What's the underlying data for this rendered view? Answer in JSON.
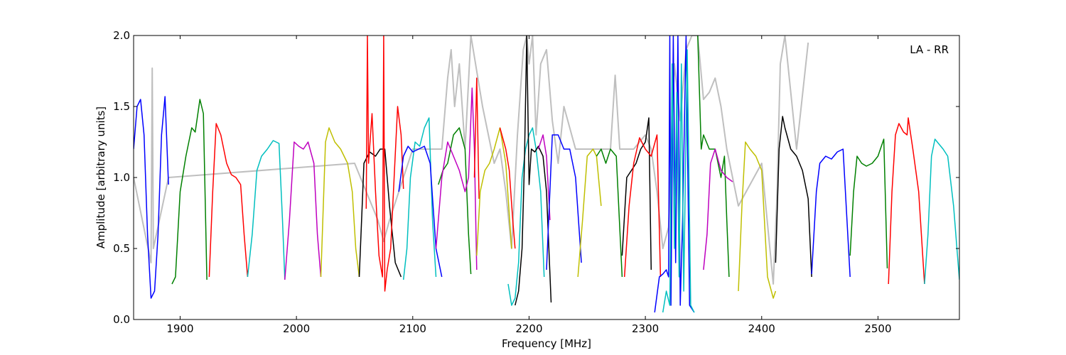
{
  "chart_data": {
    "type": "line",
    "title": "",
    "xlabel": "Frequency [MHz]",
    "ylabel": "Amplitude [arbitrary units]",
    "annotation": "LA - RR",
    "xlim": [
      1860,
      2570
    ],
    "ylim": [
      0.0,
      2.0
    ],
    "xticks": [
      "1900",
      "2000",
      "2100",
      "2200",
      "2300",
      "2400",
      "2500"
    ],
    "yticks": [
      "0.0",
      "0.5",
      "1.0",
      "1.5",
      "2.0"
    ],
    "grid": false,
    "background_series": {
      "color": "#bfbfbf",
      "x": [
        1860,
        1875,
        1876,
        1877,
        1890,
        2050,
        2070,
        2075,
        2080,
        2100,
        2125,
        2130,
        2133,
        2136,
        2140,
        2145,
        2150,
        2160,
        2170,
        2175,
        2180,
        2185,
        2190,
        2195,
        2198,
        2200,
        2203,
        2206,
        2210,
        2215,
        2220,
        2225,
        2230,
        2240,
        2250,
        2260,
        2270,
        2274,
        2278,
        2290,
        2300,
        2305,
        2310,
        2315,
        2320,
        2325,
        2330,
        2335,
        2340,
        2345,
        2350,
        2355,
        2360,
        2365,
        2370,
        2380,
        2400,
        2410,
        2413,
        2416,
        2420,
        2430,
        2440
      ],
      "y": [
        1.0,
        0.4,
        1.77,
        0.5,
        1.0,
        1.1,
        0.7,
        0.55,
        0.7,
        1.2,
        1.2,
        1.7,
        1.9,
        1.5,
        1.8,
        1.2,
        2.0,
        1.5,
        1.1,
        1.2,
        0.9,
        0.5,
        1.3,
        1.9,
        2.0,
        1.8,
        2.0,
        1.3,
        1.8,
        1.9,
        1.4,
        1.1,
        1.5,
        1.2,
        1.2,
        1.2,
        1.2,
        1.72,
        1.2,
        1.2,
        1.3,
        1.2,
        0.9,
        0.5,
        0.65,
        1.8,
        1.4,
        1.9,
        2.0,
        2.0,
        1.55,
        1.6,
        1.7,
        1.5,
        1.2,
        0.8,
        1.1,
        0.25,
        0.85,
        1.8,
        2.0,
        1.2,
        1.95
      ]
    },
    "series": [
      {
        "color": "#0000ff",
        "x": [
          1860,
          1863,
          1866,
          1869,
          1872,
          1875,
          1878,
          1881,
          1884,
          1887,
          1890
        ],
        "y": [
          1.2,
          1.5,
          1.55,
          1.3,
          0.6,
          0.15,
          0.2,
          0.6,
          1.3,
          1.57,
          0.95
        ]
      },
      {
        "color": "#008000",
        "x": [
          1893,
          1896,
          1900,
          1905,
          1910,
          1913,
          1917,
          1920,
          1923
        ],
        "y": [
          0.25,
          0.3,
          0.9,
          1.15,
          1.35,
          1.32,
          1.55,
          1.45,
          0.28
        ]
      },
      {
        "color": "#ff0000",
        "x": [
          1925,
          1928,
          1931,
          1935,
          1940,
          1944,
          1948,
          1952,
          1955,
          1958
        ],
        "y": [
          0.3,
          0.9,
          1.38,
          1.3,
          1.1,
          1.02,
          1.0,
          0.95,
          0.6,
          0.3
        ]
      },
      {
        "color": "#00bfbf",
        "x": [
          1958,
          1962,
          1966,
          1970,
          1975,
          1980,
          1985,
          1988,
          1990
        ],
        "y": [
          0.3,
          0.6,
          1.05,
          1.15,
          1.2,
          1.26,
          1.24,
          0.7,
          0.28
        ]
      },
      {
        "color": "#bf00bf",
        "x": [
          1990,
          1994,
          1998,
          2002,
          2006,
          2010,
          2015,
          2018,
          2021
        ],
        "y": [
          0.28,
          0.7,
          1.25,
          1.22,
          1.2,
          1.25,
          1.1,
          0.6,
          0.3
        ]
      },
      {
        "color": "#bfbf00",
        "x": [
          2021,
          2025,
          2028,
          2033,
          2038,
          2044,
          2048,
          2051,
          2054
        ],
        "y": [
          0.3,
          1.25,
          1.35,
          1.25,
          1.2,
          1.1,
          0.9,
          0.5,
          0.3
        ]
      },
      {
        "color": "#000000",
        "x": [
          2054,
          2058,
          2063,
          2068,
          2072,
          2076,
          2080,
          2085,
          2090
        ],
        "y": [
          0.3,
          1.1,
          1.18,
          1.15,
          1.2,
          1.2,
          0.8,
          0.4,
          0.3
        ]
      },
      {
        "color": "#ff0000",
        "x": [
          2060,
          2061,
          2062,
          2065,
          2068,
          2071,
          2074,
          2075,
          2076,
          2078,
          2081,
          2084,
          2087,
          2090,
          2092
        ],
        "y": [
          0.78,
          2.0,
          1.1,
          1.45,
          0.9,
          0.45,
          0.3,
          2.0,
          0.2,
          0.35,
          0.5,
          1.0,
          1.5,
          1.3,
          0.92
        ]
      },
      {
        "color": "#00bfbf",
        "x": [
          2092,
          2095,
          2098,
          2102,
          2106,
          2110,
          2114,
          2117,
          2120
        ],
        "y": [
          0.28,
          0.5,
          1.0,
          1.25,
          1.22,
          1.35,
          1.42,
          0.7,
          0.3
        ]
      },
      {
        "color": "#0000ff",
        "x": [
          2088,
          2092,
          2096,
          2100,
          2105,
          2110,
          2115,
          2120,
          2125
        ],
        "y": [
          0.9,
          1.15,
          1.22,
          1.18,
          1.2,
          1.22,
          1.1,
          0.5,
          0.3
        ]
      },
      {
        "color": "#008000",
        "x": [
          2122,
          2126,
          2130,
          2135,
          2140,
          2145,
          2148,
          2150
        ],
        "y": [
          0.95,
          1.05,
          1.1,
          1.3,
          1.35,
          1.2,
          0.6,
          0.32
        ]
      },
      {
        "color": "#bf00bf",
        "x": [
          2120,
          2125,
          2130,
          2135,
          2140,
          2145,
          2148,
          2151,
          2153,
          2155
        ],
        "y": [
          0.5,
          1.0,
          1.25,
          1.15,
          1.05,
          0.9,
          1.0,
          1.63,
          1.2,
          0.35
        ]
      },
      {
        "color": "#ff0000",
        "x": [
          2153,
          2155,
          2157
        ],
        "y": [
          1.0,
          1.7,
          0.85
        ]
      },
      {
        "color": "#bfbf00",
        "x": [
          2155,
          2158,
          2162,
          2166,
          2170,
          2175,
          2180,
          2185
        ],
        "y": [
          0.45,
          0.9,
          1.05,
          1.1,
          1.2,
          1.35,
          1.1,
          0.5
        ]
      },
      {
        "color": "#ff0000",
        "x": [
          2175,
          2180,
          2183,
          2186,
          2188
        ],
        "y": [
          1.35,
          1.2,
          1.05,
          0.7,
          0.5
        ]
      },
      {
        "color": "#00bfbf",
        "x": [
          2182,
          2185,
          2188,
          2191,
          2194,
          2197,
          2200,
          2203,
          2206,
          2210,
          2213
        ],
        "y": [
          0.25,
          0.1,
          0.15,
          0.4,
          1.0,
          1.2,
          1.3,
          1.35,
          1.2,
          0.9,
          0.3
        ]
      },
      {
        "color": "#000000",
        "x": [
          2188,
          2191,
          2194,
          2196,
          2198,
          2200,
          2202,
          2205,
          2208,
          2212,
          2215,
          2219
        ],
        "y": [
          0.1,
          0.2,
          0.5,
          1.1,
          2.0,
          0.95,
          1.2,
          1.18,
          1.22,
          1.15,
          0.9,
          0.12
        ]
      },
      {
        "color": "#bf00bf",
        "x": [
          2208,
          2212,
          2215,
          2218
        ],
        "y": [
          1.2,
          1.3,
          1.15,
          0.7
        ]
      },
      {
        "color": "#0000ff",
        "x": [
          2215,
          2220,
          2225,
          2230,
          2235,
          2240,
          2245
        ],
        "y": [
          0.35,
          1.3,
          1.3,
          1.2,
          1.2,
          1.0,
          0.4
        ]
      },
      {
        "color": "#bfbf00",
        "x": [
          2242,
          2246,
          2250,
          2255,
          2258,
          2262
        ],
        "y": [
          0.3,
          0.7,
          1.15,
          1.2,
          1.15,
          0.8
        ]
      },
      {
        "color": "#008000",
        "x": [
          2258,
          2262,
          2266,
          2270,
          2275,
          2280
        ],
        "y": [
          1.15,
          1.2,
          1.1,
          1.2,
          1.15,
          0.3
        ]
      },
      {
        "color": "#000000",
        "x": [
          2280,
          2284,
          2288,
          2292,
          2296,
          2300,
          2303,
          2305
        ],
        "y": [
          0.45,
          1.0,
          1.05,
          1.1,
          1.2,
          1.25,
          1.42,
          0.35
        ]
      },
      {
        "color": "#ff0000",
        "x": [
          2282,
          2286,
          2290,
          2295,
          2300,
          2305,
          2310,
          2313
        ],
        "y": [
          0.3,
          0.8,
          1.1,
          1.28,
          1.2,
          1.15,
          1.3,
          0.3
        ]
      },
      {
        "color": "#0000ff",
        "x": [
          2308,
          2312,
          2315,
          2318,
          2320,
          2321,
          2322,
          2324,
          2326,
          2328,
          2330,
          2332,
          2335,
          2338,
          2342
        ],
        "y": [
          0.05,
          0.3,
          0.32,
          0.35,
          0.3,
          2.0,
          0.1,
          2.0,
          0.4,
          2.0,
          0.1,
          0.7,
          2.0,
          0.1,
          0.05
        ]
      },
      {
        "color": "#00bfbf",
        "x": [
          2315,
          2318,
          2321,
          2323,
          2325,
          2327,
          2329,
          2331,
          2333,
          2336,
          2339,
          2342
        ],
        "y": [
          0.05,
          0.2,
          0.1,
          1.8,
          0.5,
          1.6,
          0.3,
          1.8,
          0.2,
          1.9,
          0.1,
          0.05
        ]
      },
      {
        "color": "#008000",
        "x": [
          2345,
          2348,
          2350,
          2355,
          2360,
          2365,
          2368,
          2370,
          2372
        ],
        "y": [
          2.0,
          1.2,
          1.3,
          1.2,
          1.2,
          1.0,
          1.15,
          0.7,
          0.3
        ]
      },
      {
        "color": "#bf00bf",
        "x": [
          2350,
          2353,
          2356,
          2360,
          2365,
          2370,
          2375
        ],
        "y": [
          0.35,
          0.6,
          1.1,
          1.2,
          1.05,
          1.0,
          0.97
        ]
      },
      {
        "color": "#bfbf00",
        "x": [
          2380,
          2383,
          2386,
          2390,
          2395,
          2400,
          2405,
          2410,
          2412
        ],
        "y": [
          0.2,
          0.8,
          1.25,
          1.2,
          1.15,
          1.05,
          0.3,
          0.15,
          0.2
        ]
      },
      {
        "color": "#000000",
        "x": [
          2412,
          2415,
          2418,
          2420,
          2425,
          2430,
          2435,
          2440,
          2443
        ],
        "y": [
          0.4,
          1.2,
          1.43,
          1.35,
          1.2,
          1.15,
          1.05,
          0.85,
          0.3
        ]
      },
      {
        "color": "#0000ff",
        "x": [
          2443,
          2447,
          2450,
          2455,
          2460,
          2465,
          2470,
          2474,
          2476
        ],
        "y": [
          0.32,
          0.9,
          1.1,
          1.15,
          1.13,
          1.18,
          1.2,
          0.6,
          0.3
        ]
      },
      {
        "color": "#008000",
        "x": [
          2476,
          2479,
          2482,
          2486,
          2490,
          2495,
          2500,
          2505,
          2508
        ],
        "y": [
          0.45,
          0.9,
          1.15,
          1.1,
          1.08,
          1.1,
          1.15,
          1.27,
          0.36
        ]
      },
      {
        "color": "#ff0000",
        "x": [
          2509,
          2512,
          2515,
          2518,
          2522,
          2525,
          2526,
          2530,
          2535,
          2540
        ],
        "y": [
          0.25,
          0.9,
          1.3,
          1.38,
          1.32,
          1.3,
          1.42,
          1.2,
          0.9,
          0.25
        ]
      },
      {
        "color": "#00bfbf",
        "x": [
          2540,
          2543,
          2546,
          2549,
          2552,
          2556,
          2560,
          2565,
          2570
        ],
        "y": [
          0.25,
          0.6,
          1.15,
          1.27,
          1.24,
          1.2,
          1.15,
          0.8,
          0.28
        ]
      }
    ]
  }
}
